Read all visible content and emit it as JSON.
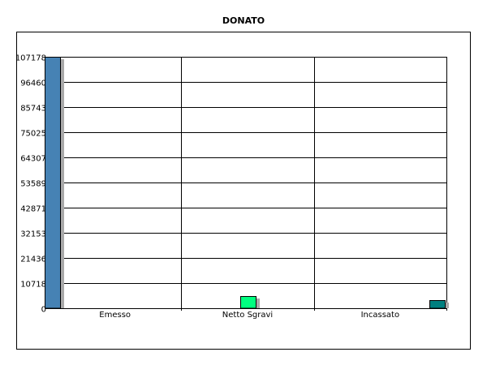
{
  "chart_data": {
    "type": "bar",
    "title": "DONATO",
    "categories": [
      "Emesso",
      "Netto Sgravi",
      "Incassato"
    ],
    "values": [
      107178,
      5100,
      3600
    ],
    "colors": [
      "#4682b4",
      "#00ff80",
      "#008080"
    ],
    "shadow_color": "#a9a9a9",
    "y_ticks": [
      "0",
      "10718",
      "21436",
      "32153",
      "42871",
      "53589",
      "64307",
      "75025",
      "85743",
      "96460",
      "107178"
    ],
    "ylim": [
      0,
      107178
    ],
    "xlabel": "",
    "ylabel": "",
    "grid": true,
    "legend": "none"
  }
}
